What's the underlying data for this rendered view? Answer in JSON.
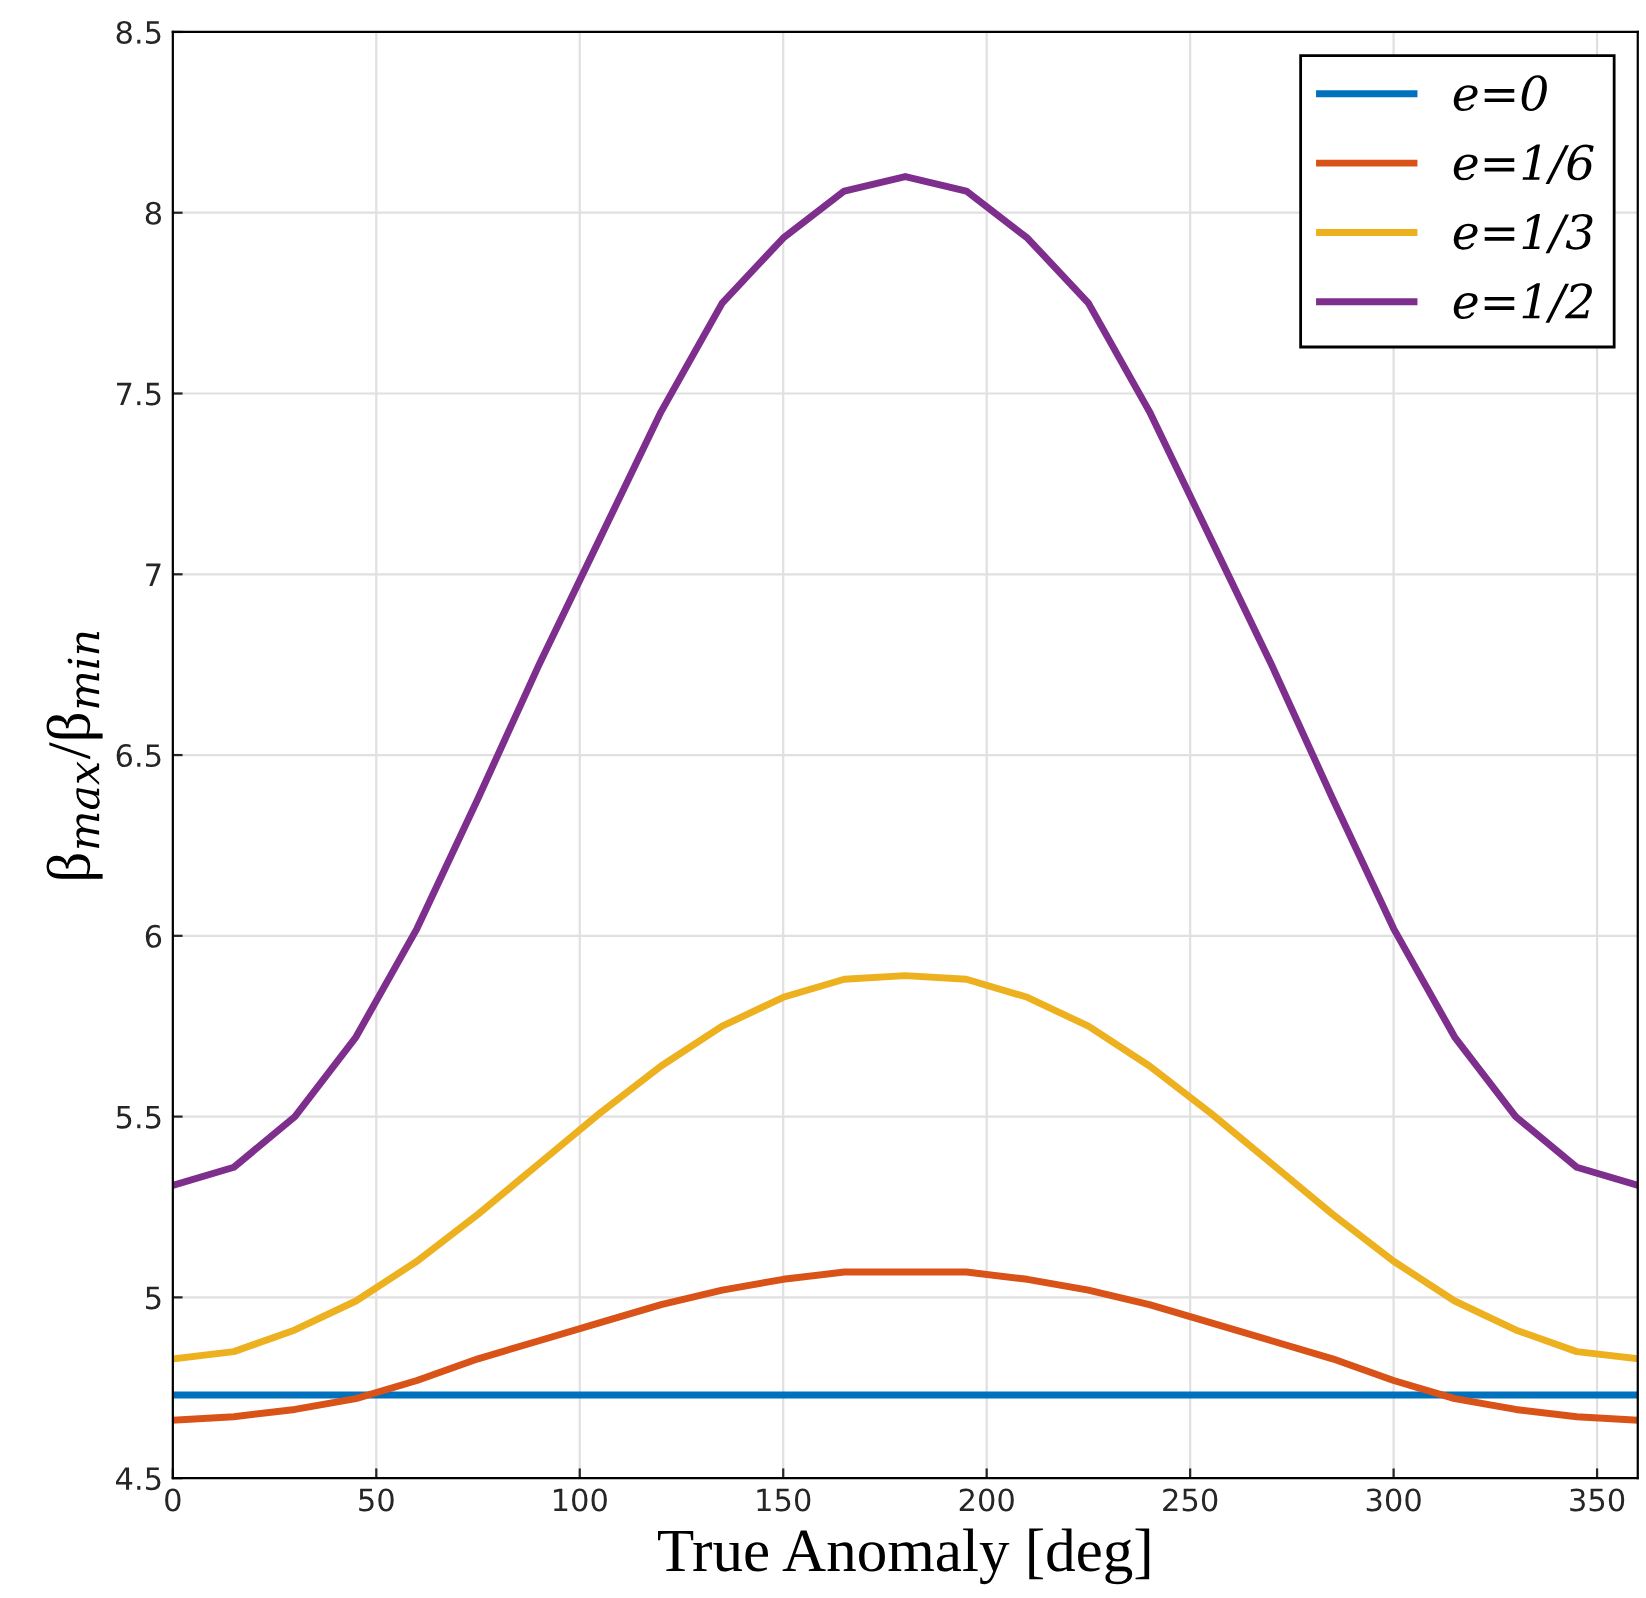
{
  "chart_data": {
    "type": "line",
    "xlabel": "True Anomaly [deg]",
    "ylabel": "β$_{max}$/β$_{min}$",
    "x": [
      0,
      15,
      30,
      45,
      60,
      75,
      90,
      105,
      120,
      135,
      150,
      165,
      180,
      195,
      210,
      225,
      240,
      255,
      270,
      285,
      300,
      315,
      330,
      345,
      360
    ],
    "series": [
      {
        "name": "e=0",
        "color": "#0072bd",
        "values": [
          4.73,
          4.73,
          4.73,
          4.73,
          4.73,
          4.73,
          4.73,
          4.73,
          4.73,
          4.73,
          4.73,
          4.73,
          4.73,
          4.73,
          4.73,
          4.73,
          4.73,
          4.73,
          4.73,
          4.73,
          4.73,
          4.73,
          4.73,
          4.73,
          4.73
        ]
      },
      {
        "name": "e=1/6",
        "color": "#d95319",
        "values": [
          4.66,
          4.67,
          4.69,
          4.72,
          4.77,
          4.83,
          4.88,
          4.93,
          4.98,
          5.02,
          5.05,
          5.07,
          5.07,
          5.07,
          5.05,
          5.02,
          4.98,
          4.93,
          4.88,
          4.83,
          4.77,
          4.72,
          4.69,
          4.67,
          4.66
        ]
      },
      {
        "name": "e=1/3",
        "color": "#edb120",
        "values": [
          4.83,
          4.85,
          4.91,
          4.99,
          5.1,
          5.23,
          5.37,
          5.51,
          5.64,
          5.75,
          5.83,
          5.88,
          5.89,
          5.88,
          5.83,
          5.75,
          5.64,
          5.51,
          5.37,
          5.23,
          5.1,
          4.99,
          4.91,
          4.85,
          4.83
        ]
      },
      {
        "name": "e=1/2",
        "color": "#7e2f8e",
        "values": [
          5.31,
          5.36,
          5.5,
          5.72,
          6.02,
          6.38,
          6.75,
          7.1,
          7.45,
          7.75,
          7.93,
          8.06,
          8.1,
          8.06,
          7.93,
          7.75,
          7.45,
          7.1,
          6.75,
          6.38,
          6.02,
          5.72,
          5.5,
          5.36,
          5.31
        ]
      }
    ],
    "xlim": [
      0,
      360
    ],
    "xticks": [
      0,
      50,
      100,
      150,
      200,
      250,
      300,
      350
    ],
    "ylim": [
      4.5,
      8.5
    ],
    "yticks": [
      4.5,
      5,
      5.5,
      6,
      6.5,
      7,
      7.5,
      8,
      8.5
    ],
    "grid": true,
    "legend": "top right",
    "marker": "none",
    "line_style": "solid"
  }
}
